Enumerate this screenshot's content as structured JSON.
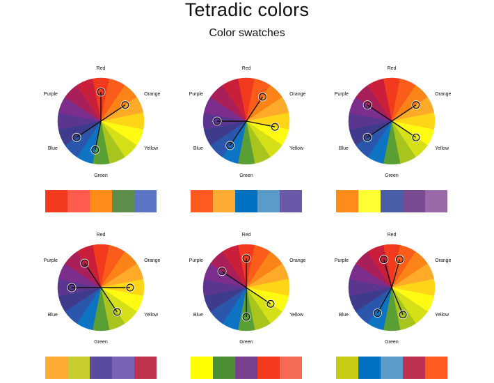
{
  "title": "Tetradic colors",
  "subtitle": "Color swatches",
  "wheel_labels": {
    "red": "Red",
    "orange": "Orange",
    "yellow": "Yellow",
    "green": "Green",
    "blue": "Blue",
    "purple": "Purple"
  },
  "wheel_sectors": [
    "#F23A1E",
    "#FA5C19",
    "#FC8317",
    "#FFAA28",
    "#FFD617",
    "#FFFA12",
    "#D6E019",
    "#A8C51E",
    "#5A9F33",
    "#0D74C4",
    "#2A57AB",
    "#3E3B8D",
    "#5B3691",
    "#7B2E8C",
    "#A91F5A",
    "#C91F3A"
  ],
  "panels": [
    {
      "picks": [
        "#F23A1E",
        "#FF5C4D",
        "#FF8C1A",
        "#5E8F4A",
        "#5B74C4"
      ],
      "markers": [
        0,
        2.5,
        8.5,
        10.5
      ]
    },
    {
      "picks": [
        "#FF5A1F",
        "#FFAA33",
        "#0070C0",
        "#5A9BC8",
        "#6A58A8"
      ],
      "markers": [
        1.5,
        4.5,
        9.5,
        12
      ]
    },
    {
      "picks": [
        "#FF8C1A",
        "#FFFF33",
        "#4A5EA8",
        "#7A4A90",
        "#9B69AA"
      ],
      "markers": [
        2.5,
        5.5,
        10.5,
        13.5
      ]
    },
    {
      "picks": [
        "#FFAA33",
        "#C8CC2E",
        "#5A4AA0",
        "#7A62B8",
        "#C0334C"
      ],
      "markers": [
        4,
        6.5,
        12,
        14.5
      ]
    },
    {
      "picks": [
        "#FFFF00",
        "#4C8F35",
        "#7A4090",
        "#F23A1E",
        "#F56B55"
      ],
      "markers": [
        0,
        5.5,
        8,
        13.5
      ]
    },
    {
      "picks": [
        "#C8CC14",
        "#0070C0",
        "#5A9BC8",
        "#C03050",
        "#FF5A1F"
      ],
      "markers": [
        0.7,
        7,
        9.3,
        15.3
      ]
    }
  ]
}
